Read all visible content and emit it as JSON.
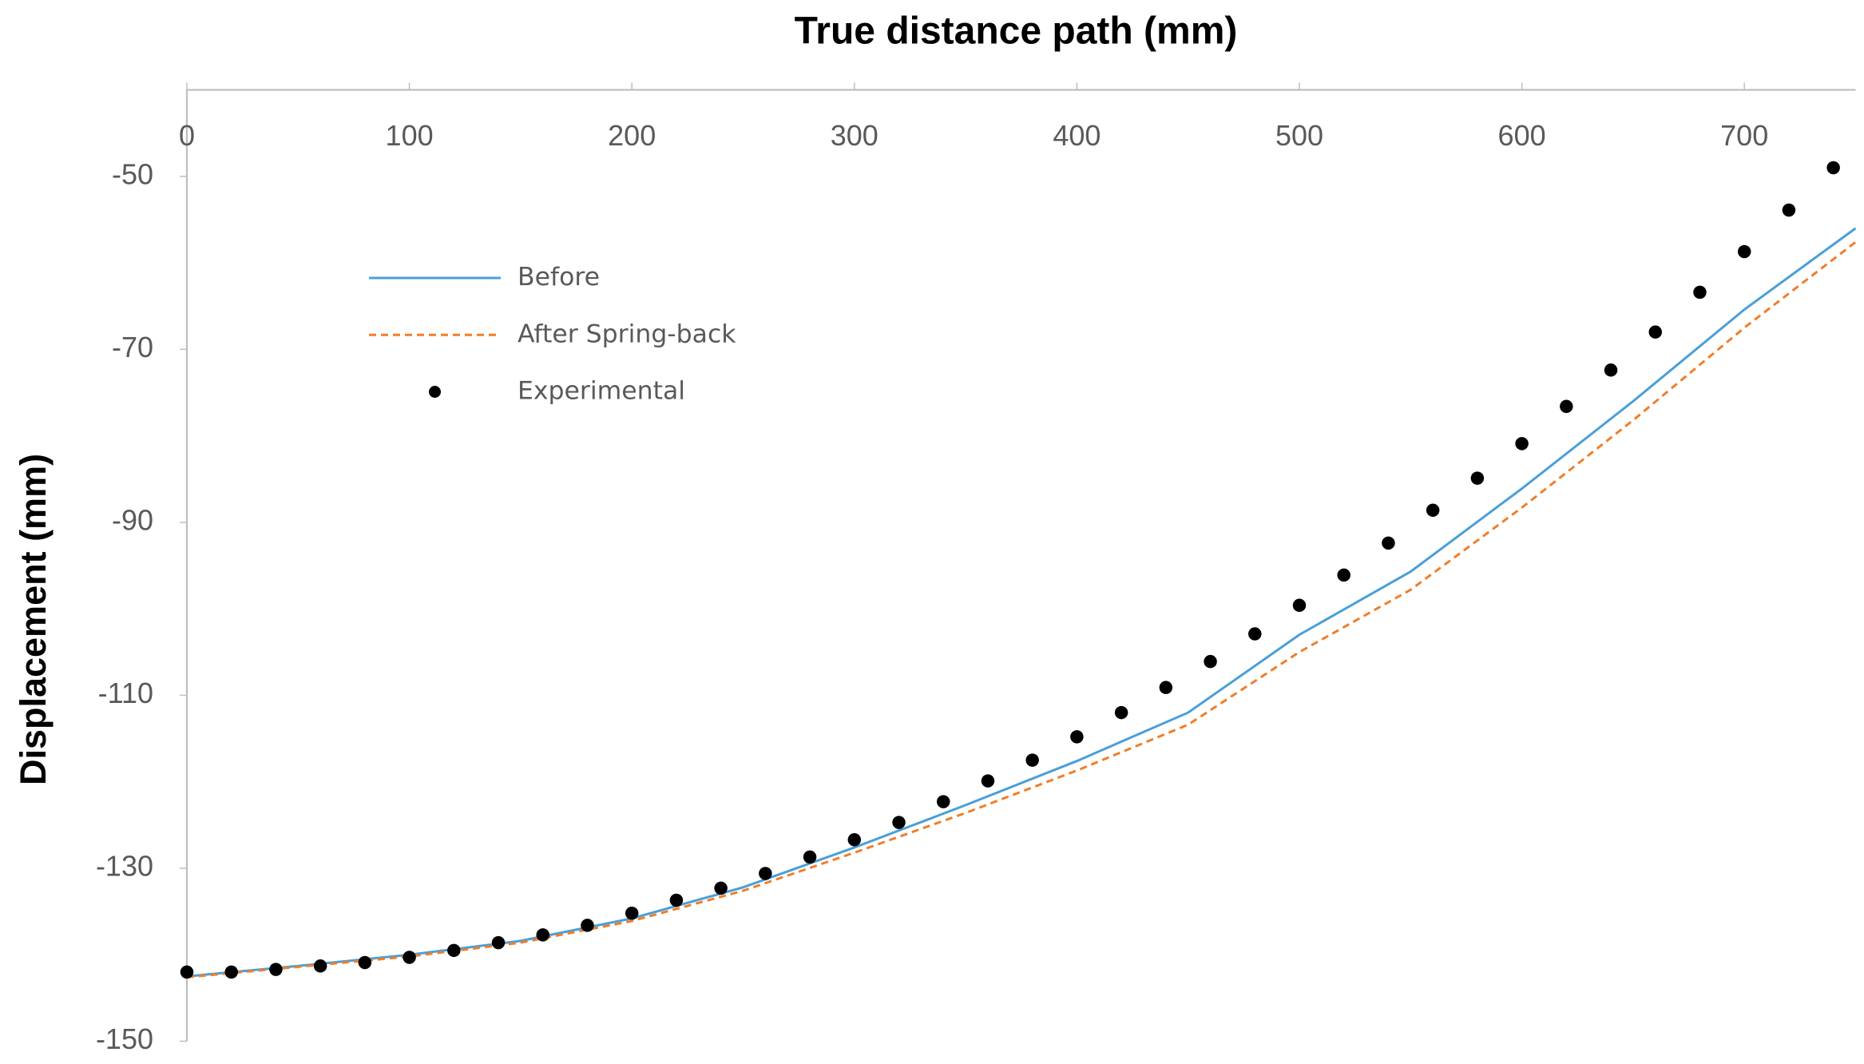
{
  "chart_data": {
    "type": "line",
    "title": "True distance path (mm)",
    "y_label": "Displacement  (mm)",
    "xlim": [
      0,
      750
    ],
    "xticks": [
      0,
      100,
      200,
      300,
      400,
      500,
      600,
      700
    ],
    "ylim": [
      -150,
      -40
    ],
    "yticks": [
      -50,
      -70,
      -90,
      -110,
      -130,
      -150
    ],
    "x_axis_position": "top",
    "grid": false,
    "legend": "upper left",
    "series": [
      {
        "name": "Before",
        "color": "#4a9fd8",
        "style": "solid",
        "x": [
          0,
          50,
          100,
          150,
          200,
          250,
          300,
          350,
          400,
          450,
          500,
          550,
          600,
          650,
          700,
          750
        ],
        "values": [
          -142.5,
          -141.3,
          -140.0,
          -138.4,
          -135.8,
          -132.2,
          -127.6,
          -122.7,
          -117.6,
          -112.0,
          -103.0,
          -95.7,
          -86.1,
          -76.0,
          -65.4,
          -56.0
        ]
      },
      {
        "name": "After Spring-back",
        "color": "#f07e2a",
        "style": "dashed",
        "x": [
          0,
          50,
          100,
          150,
          200,
          250,
          300,
          350,
          400,
          450,
          500,
          550,
          600,
          650,
          700,
          750
        ],
        "values": [
          -142.6,
          -141.4,
          -140.2,
          -138.6,
          -136.1,
          -132.6,
          -128.2,
          -123.6,
          -118.7,
          -113.4,
          -105.0,
          -97.8,
          -88.3,
          -78.2,
          -67.5,
          -57.6
        ]
      },
      {
        "name": "Experimental",
        "color": "#000000",
        "style": "markers",
        "x": [
          0,
          20,
          40,
          60,
          80,
          100,
          120,
          140,
          160,
          180,
          200,
          220,
          240,
          260,
          280,
          300,
          320,
          340,
          360,
          380,
          400,
          420,
          440,
          460,
          480,
          500,
          520,
          540,
          560,
          580,
          600,
          620,
          640,
          660,
          680,
          700,
          720,
          740
        ],
        "values": [
          -142.0,
          -142.0,
          -141.7,
          -141.3,
          -140.9,
          -140.3,
          -139.5,
          -138.6,
          -137.7,
          -136.6,
          -135.2,
          -133.7,
          -132.3,
          -130.6,
          -128.7,
          -126.7,
          -124.7,
          -122.3,
          -119.9,
          -117.5,
          -114.8,
          -112.0,
          -109.1,
          -106.1,
          -102.9,
          -99.6,
          -96.1,
          -92.4,
          -88.6,
          -84.9,
          -80.9,
          -76.6,
          -72.4,
          -68.0,
          -63.4,
          -58.7,
          -53.9,
          -49.0
        ]
      }
    ]
  }
}
